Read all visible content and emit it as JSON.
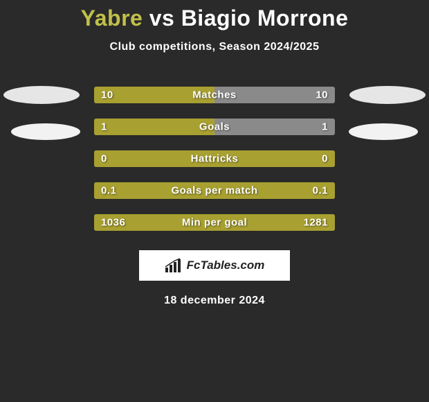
{
  "title": {
    "player1": "Yabre",
    "vs": "vs",
    "player2": "Biagio Morrone",
    "color_p1": "#c0c04a",
    "color_vs": "#ffffff",
    "color_p2": "#ffffff",
    "fontsize": 32
  },
  "subtitle": "Club competitions, Season 2024/2025",
  "date": "18 december 2024",
  "logo_text": "FcTables.com",
  "background_color": "#2a2a2a",
  "bar_colors": {
    "left_fill": "#a8a030",
    "right_fill": "#c0c0c0",
    "track": "#8a8a8a"
  },
  "ellipse_color": "#e8e8e8",
  "bars": [
    {
      "label": "Matches",
      "left": "10",
      "right": "10",
      "left_pct": 50,
      "right_pct": 0
    },
    {
      "label": "Goals",
      "left": "1",
      "right": "1",
      "left_pct": 50,
      "right_pct": 0
    },
    {
      "label": "Hattricks",
      "left": "0",
      "right": "0",
      "left_pct": 100,
      "right_pct": 0
    },
    {
      "label": "Goals per match",
      "left": "0.1",
      "right": "0.1",
      "left_pct": 100,
      "right_pct": 0
    },
    {
      "label": "Min per goal",
      "left": "1036",
      "right": "1281",
      "left_pct": 100,
      "right_pct": 0
    }
  ]
}
